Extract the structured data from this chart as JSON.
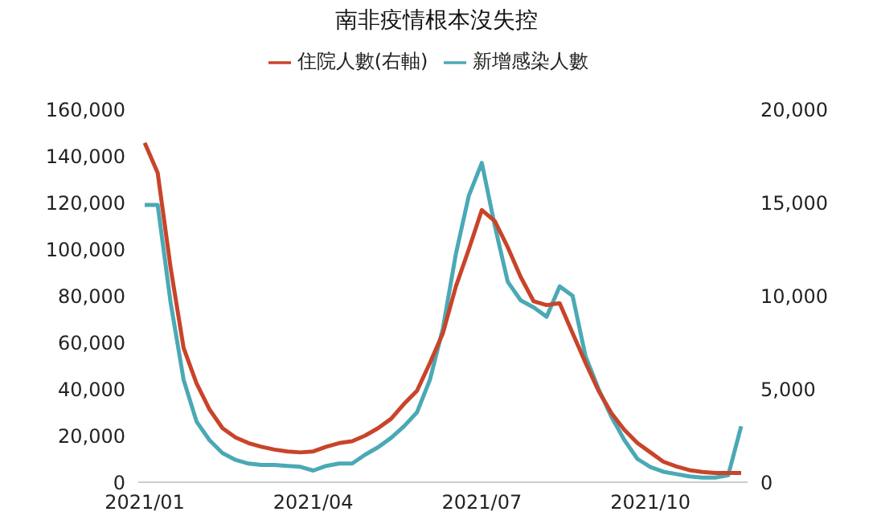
{
  "chart_data": {
    "type": "line",
    "title": "南非疫情根本沒失控",
    "categories": [
      "2021/01",
      null,
      null,
      null,
      null,
      null,
      null,
      null,
      null,
      null,
      null,
      null,
      null,
      "2021/04",
      null,
      null,
      null,
      null,
      null,
      null,
      null,
      null,
      null,
      null,
      null,
      null,
      "2021/07",
      null,
      null,
      null,
      null,
      null,
      null,
      null,
      null,
      null,
      null,
      null,
      null,
      "2021/10",
      null,
      null,
      null,
      null,
      null,
      null,
      null
    ],
    "series": [
      {
        "name": "新增感染人數",
        "color": "#4aa9b5",
        "values": [
          119000,
          119000,
          77000,
          44000,
          26000,
          18000,
          12500,
          9600,
          8000,
          7400,
          7400,
          7000,
          6600,
          5000,
          7000,
          8000,
          8000,
          11800,
          15000,
          19000,
          24000,
          30000,
          44000,
          66000,
          98000,
          123000,
          137000,
          110000,
          86000,
          78000,
          75000,
          71000,
          84000,
          80000,
          54000,
          40000,
          28000,
          18000,
          10000,
          6500,
          4500,
          3500,
          2500,
          2000,
          2000,
          3000,
          24000
        ]
      },
      {
        "name": "住院人數(右軸)",
        "color": "#c8442a",
        "axis": "y2",
        "values": [
          18200,
          16600,
          11500,
          7200,
          5300,
          3900,
          2900,
          2400,
          2100,
          1900,
          1750,
          1650,
          1600,
          1650,
          1900,
          2100,
          2200,
          2500,
          2900,
          3400,
          4200,
          4900,
          6400,
          8000,
          10500,
          12500,
          14600,
          14000,
          12600,
          11000,
          9700,
          9500,
          9600,
          8000,
          6400,
          4900,
          3700,
          2800,
          2100,
          1600,
          1100,
          850,
          650,
          550,
          500,
          500,
          500
        ]
      }
    ],
    "ylim": [
      0,
      160000
    ],
    "yticks": [
      {
        "value": 0,
        "label": "0"
      },
      {
        "value": 20000,
        "label": "20,000"
      },
      {
        "value": 40000,
        "label": "40,000"
      },
      {
        "value": 60000,
        "label": "60,000"
      },
      {
        "value": 80000,
        "label": "80,000"
      },
      {
        "value": 100000,
        "label": "100,000"
      },
      {
        "value": 120000,
        "label": "120,000"
      },
      {
        "value": 140000,
        "label": "140,000"
      },
      {
        "value": 160000,
        "label": "160,000"
      }
    ],
    "y2lim": [
      0,
      20000
    ],
    "y2ticks": [
      {
        "value": 0,
        "label": "0"
      },
      {
        "value": 5000,
        "label": "5,000"
      },
      {
        "value": 10000,
        "label": "10,000"
      },
      {
        "value": 15000,
        "label": "15,000"
      },
      {
        "value": 20000,
        "label": "20,000"
      }
    ],
    "legend": "top",
    "grid": false,
    "marker": "none",
    "line_style": "solid"
  }
}
